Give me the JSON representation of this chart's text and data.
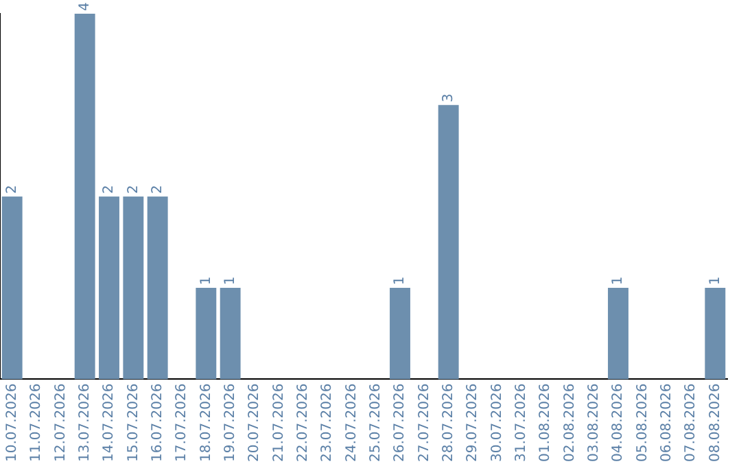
{
  "chart_data": {
    "type": "bar",
    "categories": [
      "10.07.2026",
      "11.07.2026",
      "12.07.2026",
      "13.07.2026",
      "14.07.2026",
      "15.07.2026",
      "16.07.2026",
      "17.07.2026",
      "18.07.2026",
      "19.07.2026",
      "20.07.2026",
      "21.07.2026",
      "22.07.2026",
      "23.07.2026",
      "24.07.2026",
      "25.07.2026",
      "26.07.2026",
      "27.07.2026",
      "28.07.2026",
      "29.07.2026",
      "30.07.2026",
      "31.07.2026",
      "01.08.2026",
      "02.08.2026",
      "03.08.2026",
      "04.08.2026",
      "05.08.2026",
      "06.08.2026",
      "07.08.2026",
      "08.08.2026"
    ],
    "values": [
      2,
      null,
      null,
      4,
      2,
      2,
      2,
      null,
      1,
      1,
      null,
      null,
      null,
      null,
      null,
      null,
      1,
      null,
      3,
      null,
      null,
      null,
      null,
      null,
      null,
      1,
      null,
      null,
      null,
      1
    ],
    "color": "#6d8fae",
    "data_labels": true,
    "grid": false,
    "legend": false,
    "tick_labels": "x"
  }
}
